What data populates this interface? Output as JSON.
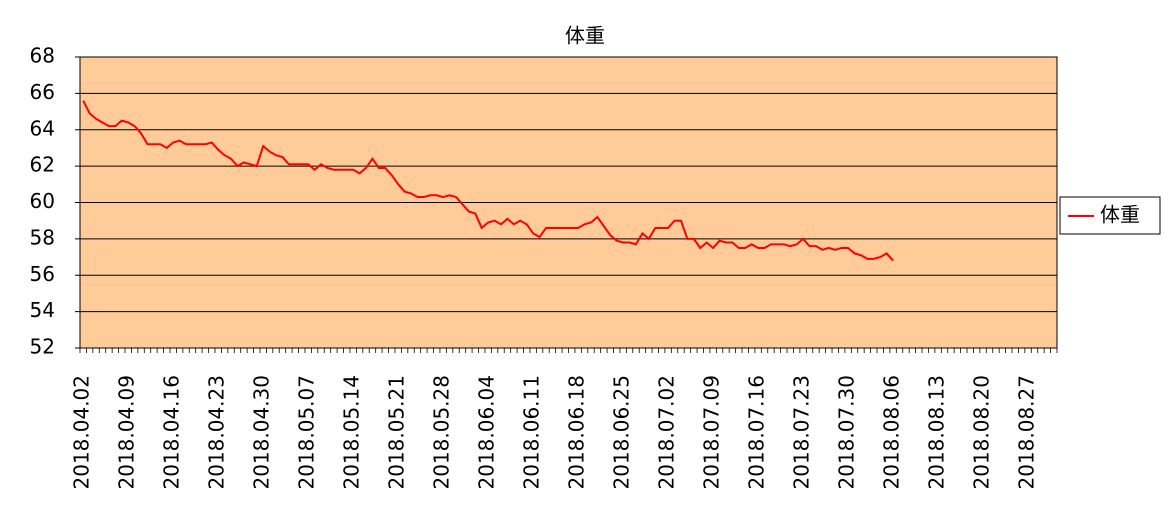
{
  "chart_data": {
    "type": "line",
    "title": "体重",
    "categories": [
      "2018.04.02",
      null,
      null,
      null,
      null,
      null,
      null,
      "2018.04.09",
      null,
      null,
      null,
      null,
      null,
      null,
      "2018.04.16",
      null,
      null,
      null,
      null,
      null,
      null,
      "2018.04.23",
      null,
      null,
      null,
      null,
      null,
      null,
      "2018.04.30",
      null,
      null,
      null,
      null,
      null,
      null,
      "2018.05.07",
      null,
      null,
      null,
      null,
      null,
      null,
      "2018.05.14",
      null,
      null,
      null,
      null,
      null,
      null,
      "2018.05.21",
      null,
      null,
      null,
      null,
      null,
      null,
      "2018.05.28",
      null,
      null,
      null,
      null,
      null,
      null,
      "2018.06.04",
      null,
      null,
      null,
      null,
      null,
      null,
      "2018.06.11",
      null,
      null,
      null,
      null,
      null,
      null,
      "2018.06.18",
      null,
      null,
      null,
      null,
      null,
      null,
      "2018.06.25",
      null,
      null,
      null,
      null,
      null,
      null,
      "2018.07.02",
      null,
      null,
      null,
      null,
      null,
      null,
      "2018.07.09",
      null,
      null,
      null,
      null,
      null,
      null,
      "2018.07.16",
      null,
      null,
      null,
      null,
      null,
      null,
      "2018.07.23",
      null,
      null,
      null,
      null,
      null,
      null,
      "2018.07.30",
      null,
      null,
      null,
      null,
      null,
      null,
      "2018.08.06",
      null,
      null,
      null,
      null,
      null,
      null,
      "2018.08.13",
      null,
      null,
      null,
      null,
      null,
      null,
      "2018.08.20",
      null,
      null,
      null,
      null,
      null,
      null,
      "2018.08.27",
      null,
      null,
      null,
      null
    ],
    "series": [
      {
        "name": "体重",
        "color": "#ff0000",
        "values": [
          65.6,
          64.9,
          64.6,
          64.4,
          64.2,
          64.2,
          64.5,
          64.4,
          64.2,
          63.8,
          63.2,
          63.2,
          63.2,
          63.0,
          63.3,
          63.4,
          63.2,
          63.2,
          63.2,
          63.2,
          63.3,
          62.9,
          62.6,
          62.4,
          62.0,
          62.2,
          62.1,
          62.0,
          63.1,
          62.8,
          62.6,
          62.5,
          62.1,
          62.1,
          62.1,
          62.1,
          61.8,
          62.1,
          61.9,
          61.8,
          61.8,
          61.8,
          61.8,
          61.6,
          61.9,
          62.4,
          61.9,
          61.9,
          61.5,
          61.0,
          60.6,
          60.5,
          60.3,
          60.3,
          60.4,
          60.4,
          60.3,
          60.4,
          60.3,
          59.9,
          59.5,
          59.4,
          58.6,
          58.9,
          59.0,
          58.8,
          59.1,
          58.8,
          59.0,
          58.8,
          58.3,
          58.1,
          58.6,
          58.6,
          58.6,
          58.6,
          58.6,
          58.6,
          58.8,
          58.9,
          59.2,
          58.7,
          58.2,
          57.9,
          57.8,
          57.8,
          57.7,
          58.3,
          58.0,
          58.6,
          58.6,
          58.6,
          59.0,
          59.0,
          58.0,
          58.0,
          57.5,
          57.8,
          57.5,
          57.9,
          57.8,
          57.8,
          57.5,
          57.5,
          57.7,
          57.5,
          57.5,
          57.7,
          57.7,
          57.7,
          57.6,
          57.7,
          58.0,
          57.6,
          57.6,
          57.4,
          57.5,
          57.4,
          57.5,
          57.5,
          57.2,
          57.1,
          56.9,
          56.9,
          57.0,
          57.2,
          56.8,
          null,
          null,
          null,
          null,
          null,
          null,
          null,
          null,
          null,
          null,
          null,
          null,
          null,
          null,
          null,
          null,
          null,
          null,
          null,
          null,
          null,
          null,
          null,
          null,
          null
        ]
      }
    ],
    "ylim": [
      52,
      68
    ],
    "yticks": [
      52,
      54,
      56,
      58,
      60,
      62,
      64,
      66,
      68
    ],
    "grid": true,
    "legend": "right",
    "plot_background": "#ffcc99"
  }
}
